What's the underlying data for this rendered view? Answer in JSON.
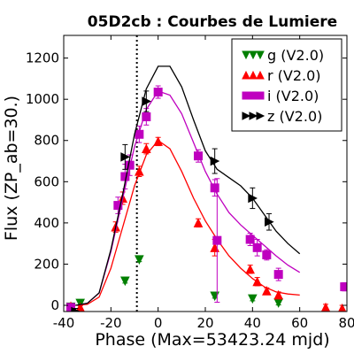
{
  "chart_data": {
    "type": "scatter",
    "title": "05D2cb : Courbes de Lumiere",
    "xlabel": "Phase (Max=53423.24 mjd)",
    "ylabel": "Flux (ZP_ab=30.)",
    "xlim": [
      -40,
      80
    ],
    "ylim": [
      -30,
      1310
    ],
    "xticks": [
      -40,
      -20,
      0,
      20,
      40,
      60,
      80
    ],
    "yticks": [
      0,
      200,
      400,
      600,
      800,
      1000,
      1200
    ],
    "vline_x": -9,
    "legend_position": "upper right",
    "series": [
      {
        "name": "g (V2.0)",
        "color": "#007f00",
        "marker": "triangle-down",
        "points": [
          {
            "x": -37,
            "y": -8,
            "err": 8
          },
          {
            "x": -33,
            "y": 10,
            "err": 8
          },
          {
            "x": -14,
            "y": 118,
            "err": 10
          },
          {
            "x": -8,
            "y": 222,
            "err": 10
          },
          {
            "x": 24,
            "y": 45,
            "err": 10
          },
          {
            "x": 40,
            "y": 32,
            "err": 10
          },
          {
            "x": 51,
            "y": 12,
            "err": 10
          }
        ],
        "curve": []
      },
      {
        "name": "r (V2.0)",
        "color": "#ff0000",
        "marker": "triangle-up",
        "points": [
          {
            "x": -37,
            "y": -5,
            "err": 10
          },
          {
            "x": -33,
            "y": -10,
            "err": 8
          },
          {
            "x": -18,
            "y": 380,
            "err": 25
          },
          {
            "x": -15,
            "y": 520,
            "err": 30
          },
          {
            "x": -8,
            "y": 650,
            "err": 25
          },
          {
            "x": -5,
            "y": 760,
            "err": 25
          },
          {
            "x": 0,
            "y": 795,
            "err": 20
          },
          {
            "x": 17,
            "y": 400,
            "err": 20
          },
          {
            "x": 24,
            "y": 280,
            "err": 40
          },
          {
            "x": 39,
            "y": 175,
            "err": 20
          },
          {
            "x": 42,
            "y": 115,
            "err": 20
          },
          {
            "x": 46,
            "y": 70,
            "err": 15
          },
          {
            "x": 51,
            "y": 50,
            "err": 15
          },
          {
            "x": 71,
            "y": -10,
            "err": 15
          },
          {
            "x": 78,
            "y": -15,
            "err": 15
          }
        ],
        "curve": [
          [
            -35,
            0
          ],
          [
            -30,
            5
          ],
          [
            -25,
            40
          ],
          [
            -20,
            180
          ],
          [
            -15,
            380
          ],
          [
            -10,
            580
          ],
          [
            -5,
            730
          ],
          [
            0,
            800
          ],
          [
            5,
            760
          ],
          [
            10,
            650
          ],
          [
            15,
            520
          ],
          [
            20,
            410
          ],
          [
            25,
            320
          ],
          [
            30,
            240
          ],
          [
            35,
            180
          ],
          [
            40,
            130
          ],
          [
            45,
            90
          ],
          [
            50,
            65
          ],
          [
            55,
            55
          ],
          [
            60,
            50
          ]
        ]
      },
      {
        "name": "i (V2.0)",
        "color": "#bf00bf",
        "marker": "square",
        "points": [
          {
            "x": -37,
            "y": -10,
            "err": 15
          },
          {
            "x": -17,
            "y": 485,
            "err": 40
          },
          {
            "x": -14,
            "y": 625,
            "err": 60
          },
          {
            "x": -12,
            "y": 680,
            "err": 50
          },
          {
            "x": -8,
            "y": 830,
            "err": 40
          },
          {
            "x": -5,
            "y": 915,
            "err": 40
          },
          {
            "x": 0,
            "y": 1035,
            "err": 30
          },
          {
            "x": 17,
            "y": 725,
            "err": 30
          },
          {
            "x": 24,
            "y": 570,
            "err": 40
          },
          {
            "x": 25,
            "y": 315,
            "err": 300
          },
          {
            "x": 39,
            "y": 320,
            "err": 30
          },
          {
            "x": 42,
            "y": 280,
            "err": 40
          },
          {
            "x": 46,
            "y": 245,
            "err": 25
          },
          {
            "x": 51,
            "y": 150,
            "err": 30
          },
          {
            "x": 79,
            "y": 90,
            "err": 20
          }
        ],
        "curve": [
          [
            -35,
            0
          ],
          [
            -30,
            10
          ],
          [
            -25,
            60
          ],
          [
            -20,
            260
          ],
          [
            -15,
            520
          ],
          [
            -10,
            770
          ],
          [
            -5,
            950
          ],
          [
            0,
            1040
          ],
          [
            5,
            1020
          ],
          [
            10,
            930
          ],
          [
            15,
            790
          ],
          [
            20,
            650
          ],
          [
            25,
            540
          ],
          [
            30,
            450
          ],
          [
            35,
            390
          ],
          [
            40,
            340
          ],
          [
            45,
            290
          ],
          [
            50,
            240
          ],
          [
            55,
            195
          ],
          [
            60,
            160
          ]
        ]
      },
      {
        "name": "z (V2.0)",
        "color": "#000000",
        "marker": "triangle-right",
        "points": [
          {
            "x": -35,
            "y": -30,
            "err": 15
          },
          {
            "x": -14,
            "y": 720,
            "err": 60
          },
          {
            "x": -5,
            "y": 990,
            "err": 50
          },
          {
            "x": 24,
            "y": 700,
            "err": 60
          },
          {
            "x": 40,
            "y": 520,
            "err": 50
          },
          {
            "x": 47,
            "y": 405,
            "err": 40
          }
        ],
        "curve": [
          [
            -35,
            0
          ],
          [
            -30,
            10
          ],
          [
            -25,
            60
          ],
          [
            -20,
            270
          ],
          [
            -15,
            540
          ],
          [
            -10,
            830
          ],
          [
            -5,
            1050
          ],
          [
            0,
            1160
          ],
          [
            5,
            1160
          ],
          [
            10,
            1060
          ],
          [
            15,
            900
          ],
          [
            20,
            750
          ],
          [
            25,
            660
          ],
          [
            30,
            620
          ],
          [
            35,
            580
          ],
          [
            40,
            520
          ],
          [
            45,
            440
          ],
          [
            50,
            360
          ],
          [
            55,
            300
          ],
          [
            60,
            250
          ]
        ]
      }
    ]
  }
}
